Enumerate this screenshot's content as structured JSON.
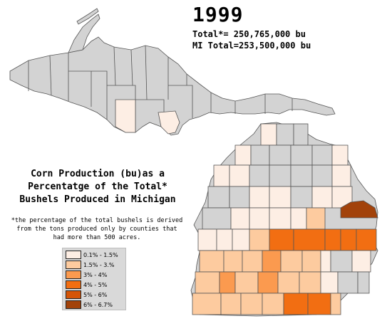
{
  "header": {
    "year": "1999",
    "total": "Total*= 250,765,000 bu",
    "mi_total": "MI Total=253,500,000 bu"
  },
  "title": {
    "line1": "Corn Production (bu)as a",
    "line2": "Percentatge of the Total*",
    "line3": "Bushels Produced in Michigan"
  },
  "footnote": {
    "line1": "*the percentage of the total bushels is derived",
    "line2": "from the tons produced only by counties that",
    "line3": "had more than 500 acres."
  },
  "legend": [
    {
      "label": "0.1% - 1.5%",
      "color": "#fdeee4"
    },
    {
      "label": "1.5% - 3.%",
      "color": "#fdcb9f"
    },
    {
      "label": "3% - 4%",
      "color": "#fb9a4f"
    },
    {
      "label": "4% - 5%",
      "color": "#f26e12"
    },
    {
      "label": "5% - 6%",
      "color": "#d45407"
    },
    {
      "label": "6% - 6.7%",
      "color": "#a2420a"
    }
  ],
  "colors": {
    "no_data": "#d3d3d3",
    "border": "#555555"
  }
}
